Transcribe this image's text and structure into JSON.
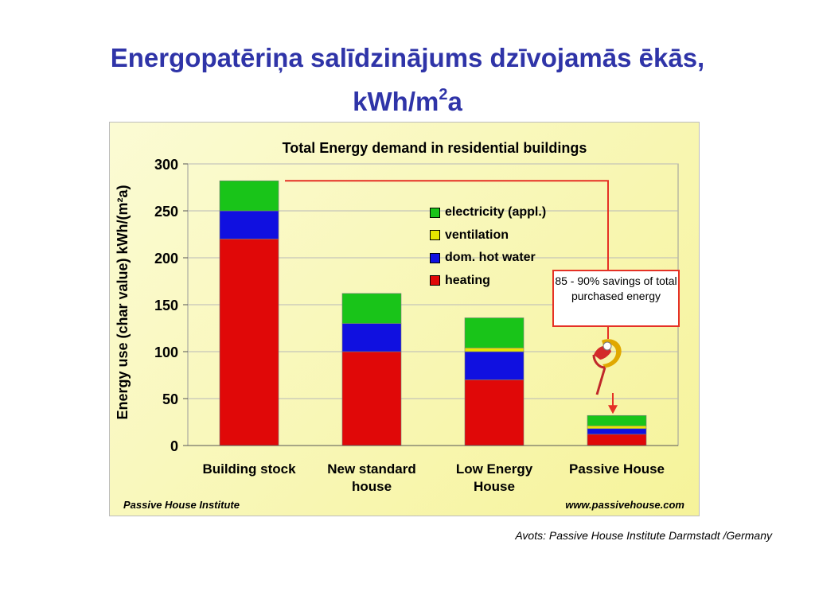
{
  "slide": {
    "title_line1": "Energopatēriņa salīdzinājums dzīvojamās ēkās,",
    "title_line2_main": "kWh/m",
    "title_line2_sup": "2",
    "title_line2_end": "a"
  },
  "colors": {
    "electricity": "#19c419",
    "ventilation": "#e6e600",
    "hot_water": "#1010e0",
    "heating": "#e00808",
    "highlight": "#e53125"
  },
  "chart_data": {
    "type": "bar",
    "stacked": true,
    "title": "Total Energy demand in residential buildings",
    "ylabel": "Energy use (char value)  kWh/(m²a)",
    "xlabel": "",
    "ylim": [
      0,
      300
    ],
    "yticks": [
      0,
      50,
      100,
      150,
      200,
      250,
      300
    ],
    "grid": true,
    "legend_position": "top-right",
    "categories": [
      "Building stock",
      "New standard house",
      "Low Energy House",
      "Passive House"
    ],
    "series": [
      {
        "name": "heating",
        "color": "#e00808",
        "values": [
          220,
          100,
          70,
          12
        ]
      },
      {
        "name": "dom. hot water",
        "color": "#1010e0",
        "values": [
          30,
          30,
          30,
          6
        ]
      },
      {
        "name": "ventilation",
        "color": "#e6e600",
        "values": [
          0,
          0,
          4,
          3
        ]
      },
      {
        "name": "electricity (appl.)",
        "color": "#19c419",
        "values": [
          32,
          32,
          32,
          11
        ]
      }
    ],
    "annotation": "85 - 90% savings of total purchased energy",
    "footer_left": "Passive House Institute",
    "footer_right": "www.passivehouse.com"
  },
  "legend_items": [
    {
      "label": "electricity (appl.)",
      "color": "#19c419"
    },
    {
      "label": "ventilation",
      "color": "#e6e600"
    },
    {
      "label": "dom. hot water",
      "color": "#1010e0"
    },
    {
      "label": "heating",
      "color": "#e00808"
    }
  ],
  "source": "Avots: Passive House Institute Darmstadt /Germany",
  "logo_icon": "passive-house-logo-icon"
}
